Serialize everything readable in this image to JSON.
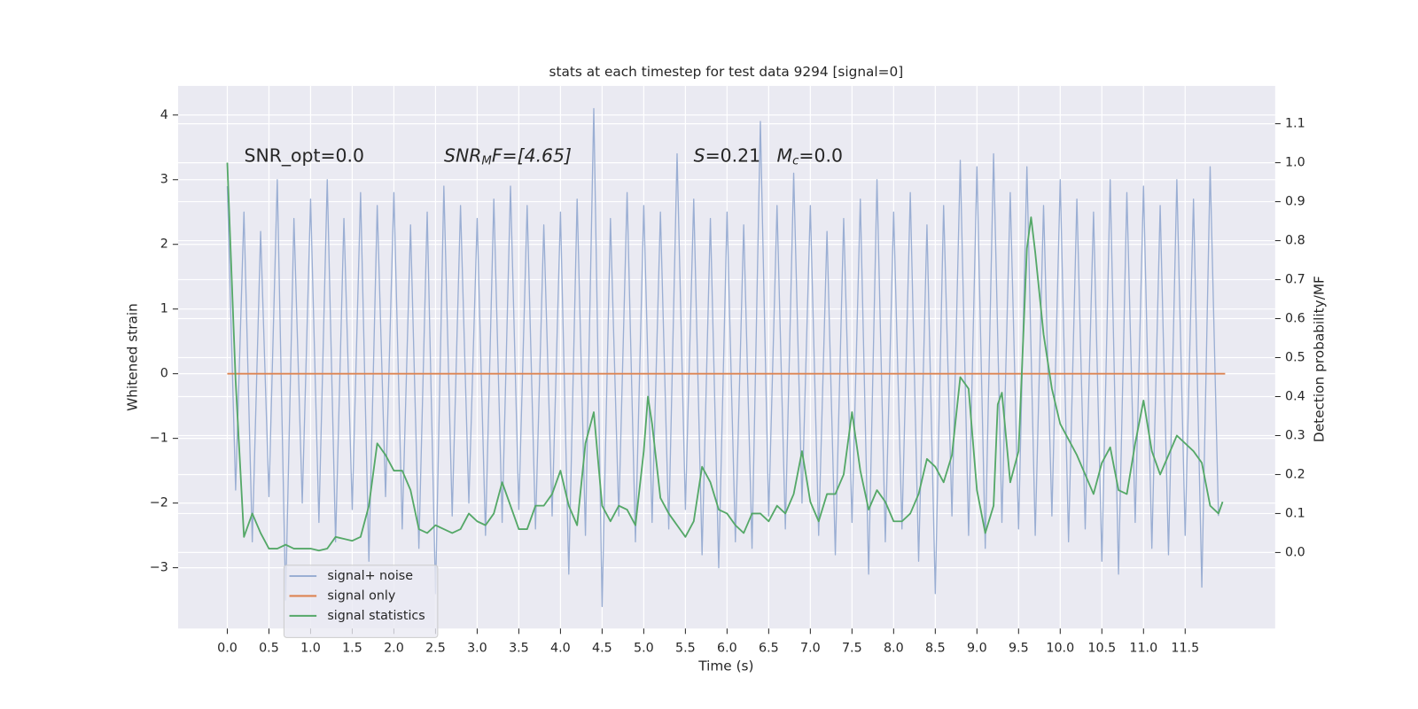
{
  "chart_data": {
    "type": "line",
    "title": "stats at each timestep for test data 9294 [signal=0]",
    "x_label": "Time (s)",
    "y_label": "Whitened strain",
    "y2_label": "Detection probability/MF",
    "annotations": [
      "SNR_opt=0.0",
      {
        "main": "SNR",
        "sub": "M",
        "tail": "F=[4.65]"
      },
      {
        "main": "S",
        "tail": "=0.21"
      },
      {
        "main": "M",
        "sub": "c",
        "tail": "=0.0"
      }
    ],
    "xlim": [
      -0.59,
      12.58
    ],
    "ylim": [
      -3.94,
      4.45
    ],
    "y2lim": [
      -0.195,
      1.197
    ],
    "xticks": [
      {
        "value": 0,
        "label": "0.0"
      },
      0.5,
      {
        "value": 1,
        "label": "1.0"
      },
      1.5,
      {
        "value": 2,
        "label": "2.0"
      },
      2.5,
      {
        "value": 3,
        "label": "3.0"
      },
      3.5,
      {
        "value": 4,
        "label": "4.0"
      },
      4.5,
      {
        "value": 5,
        "label": "5.0"
      },
      5.5,
      {
        "value": 6,
        "label": "6.0"
      },
      6.5,
      {
        "value": 7,
        "label": "7.0"
      },
      7.5,
      {
        "value": 8,
        "label": "8.0"
      },
      8.5,
      {
        "value": 9,
        "label": "9.0"
      },
      9.5,
      {
        "value": 10,
        "label": "10.0"
      },
      10.5,
      {
        "value": 11,
        "label": "11.0"
      },
      11.5
    ],
    "yticks": [
      {
        "value": -3,
        "label": "−3"
      },
      {
        "value": -2,
        "label": "−2"
      },
      {
        "value": -1,
        "label": "−1"
      },
      0,
      1,
      2,
      3,
      4
    ],
    "y2ticks": [
      {
        "value": 0,
        "label": "0.0"
      },
      0.1,
      0.2,
      0.3,
      0.4,
      0.5,
      0.6,
      0.7,
      0.8,
      0.9,
      {
        "value": 1,
        "label": "1.0"
      },
      1.1
    ],
    "grid": true,
    "legend": "lower left",
    "series": [
      {
        "name": "signal+ noise",
        "color": "#9aaed3",
        "x": [
          0,
          0.1,
          0.2,
          0.3,
          0.4,
          0.5,
          0.6,
          0.7,
          0.8,
          0.9,
          1,
          1.1,
          1.2,
          1.3,
          1.4,
          1.5,
          1.6,
          1.7,
          1.8,
          1.9,
          2,
          2.1,
          2.2,
          2.3,
          2.4,
          2.5,
          2.6,
          2.7,
          2.8,
          2.9,
          3,
          3.1,
          3.2,
          3.3,
          3.4,
          3.5,
          3.6,
          3.7,
          3.8,
          3.9,
          4,
          4.1,
          4.2,
          4.3,
          4.4,
          4.5,
          4.6,
          4.7,
          4.8,
          4.9,
          5,
          5.1,
          5.2,
          5.3,
          5.4,
          5.5,
          5.6,
          5.7,
          5.8,
          5.9,
          6,
          6.1,
          6.2,
          6.3,
          6.4,
          6.5,
          6.6,
          6.7,
          6.8,
          6.9,
          7,
          7.1,
          7.2,
          7.3,
          7.4,
          7.5,
          7.6,
          7.7,
          7.8,
          7.9,
          8,
          8.1,
          8.2,
          8.3,
          8.4,
          8.5,
          8.6,
          8.7,
          8.8,
          8.9,
          9,
          9.1,
          9.2,
          9.3,
          9.4,
          9.5,
          9.6,
          9.7,
          9.8,
          9.9,
          10,
          10.1,
          10.2,
          10.3,
          10.4,
          10.5,
          10.6,
          10.7,
          10.8,
          10.9,
          11,
          11.1,
          11.2,
          11.3,
          11.4,
          11.5,
          11.6,
          11.7,
          11.8,
          11.9
        ],
        "values": [
          2.9,
          -1.8,
          2.5,
          -2.6,
          2.2,
          -1.9,
          3.0,
          -3.5,
          2.4,
          -2.0,
          2.7,
          -2.3,
          3.0,
          -2.6,
          2.4,
          -2.1,
          2.8,
          -2.9,
          2.6,
          -1.9,
          2.8,
          -2.4,
          2.3,
          -2.7,
          2.5,
          -3.4,
          2.9,
          -2.2,
          2.6,
          -2.0,
          2.4,
          -2.5,
          2.7,
          -2.3,
          2.9,
          -2.1,
          2.6,
          -2.4,
          2.3,
          -2.2,
          2.5,
          -3.1,
          2.7,
          -2.5,
          4.1,
          -3.6,
          2.4,
          -2.2,
          2.8,
          -2.6,
          2.6,
          -2.3,
          2.5,
          -2.4,
          3.4,
          -2.1,
          2.7,
          -2.8,
          2.4,
          -3.0,
          2.5,
          -2.6,
          2.3,
          -2.7,
          3.9,
          -2.2,
          2.6,
          -2.4,
          3.1,
          -2.0,
          2.6,
          -2.5,
          2.2,
          -2.8,
          2.4,
          -2.3,
          2.7,
          -3.1,
          3.0,
          -2.6,
          2.5,
          -2.4,
          2.8,
          -2.9,
          2.3,
          -3.4,
          2.6,
          -2.2,
          3.3,
          -2.5,
          3.2,
          -2.7,
          3.4,
          -2.3,
          2.8,
          -2.4,
          3.2,
          -2.5,
          2.6,
          -2.2,
          3.0,
          -2.6,
          2.7,
          -2.4,
          2.5,
          -2.9,
          3.0,
          -3.1,
          2.8,
          -2.3,
          2.9,
          -2.7,
          2.6,
          -2.8,
          3.0,
          -2.5,
          2.7,
          -3.3,
          3.2,
          -2.2
        ]
      },
      {
        "name": "signal only",
        "color": "#dd8452",
        "x": [
          0,
          11.98
        ],
        "values": [
          0,
          0
        ]
      },
      {
        "name": "signal statistics",
        "color": "#55a868",
        "axis": "y2",
        "x": [
          0,
          0.1,
          0.2,
          0.3,
          0.4,
          0.5,
          0.6,
          0.7,
          0.8,
          0.9,
          1,
          1.1,
          1.2,
          1.3,
          1.4,
          1.5,
          1.6,
          1.7,
          1.8,
          1.9,
          2,
          2.1,
          2.2,
          2.3,
          2.4,
          2.5,
          2.6,
          2.7,
          2.8,
          2.9,
          3,
          3.1,
          3.2,
          3.3,
          3.4,
          3.5,
          3.6,
          3.7,
          3.8,
          3.9,
          4,
          4.1,
          4.2,
          4.3,
          4.4,
          4.5,
          4.6,
          4.7,
          4.8,
          4.9,
          5,
          5.05,
          5.1,
          5.2,
          5.3,
          5.4,
          5.5,
          5.6,
          5.7,
          5.8,
          5.9,
          6,
          6.1,
          6.2,
          6.3,
          6.4,
          6.5,
          6.6,
          6.7,
          6.8,
          6.9,
          7,
          7.1,
          7.2,
          7.3,
          7.4,
          7.5,
          7.6,
          7.7,
          7.8,
          7.9,
          8,
          8.1,
          8.2,
          8.3,
          8.4,
          8.5,
          8.6,
          8.7,
          8.8,
          8.9,
          9,
          9.1,
          9.2,
          9.25,
          9.3,
          9.4,
          9.5,
          9.6,
          9.65,
          9.7,
          9.8,
          9.9,
          10,
          10.1,
          10.2,
          10.3,
          10.4,
          10.5,
          10.6,
          10.7,
          10.8,
          10.9,
          11,
          11.1,
          11.2,
          11.3,
          11.4,
          11.5,
          11.6,
          11.7,
          11.8,
          11.9,
          11.95
        ],
        "values": [
          1.0,
          0.44,
          0.04,
          0.1,
          0.05,
          0.01,
          0.01,
          0.02,
          0.01,
          0.01,
          0.01,
          0.005,
          0.01,
          0.04,
          0.035,
          0.03,
          0.04,
          0.12,
          0.28,
          0.25,
          0.21,
          0.21,
          0.16,
          0.06,
          0.05,
          0.07,
          0.06,
          0.05,
          0.06,
          0.1,
          0.08,
          0.07,
          0.1,
          0.18,
          0.12,
          0.06,
          0.06,
          0.12,
          0.12,
          0.15,
          0.21,
          0.12,
          0.07,
          0.28,
          0.36,
          0.12,
          0.08,
          0.12,
          0.11,
          0.07,
          0.26,
          0.4,
          0.33,
          0.14,
          0.1,
          0.07,
          0.04,
          0.08,
          0.22,
          0.18,
          0.11,
          0.1,
          0.07,
          0.05,
          0.1,
          0.1,
          0.08,
          0.12,
          0.1,
          0.15,
          0.26,
          0.13,
          0.08,
          0.15,
          0.15,
          0.2,
          0.36,
          0.21,
          0.11,
          0.16,
          0.13,
          0.08,
          0.08,
          0.1,
          0.15,
          0.24,
          0.22,
          0.18,
          0.25,
          0.45,
          0.42,
          0.16,
          0.05,
          0.12,
          0.38,
          0.41,
          0.18,
          0.26,
          0.78,
          0.86,
          0.77,
          0.56,
          0.42,
          0.33,
          0.29,
          0.25,
          0.2,
          0.15,
          0.23,
          0.27,
          0.16,
          0.15,
          0.28,
          0.39,
          0.26,
          0.2,
          0.25,
          0.3,
          0.28,
          0.26,
          0.23,
          0.12,
          0.1,
          0.13
        ]
      }
    ]
  }
}
